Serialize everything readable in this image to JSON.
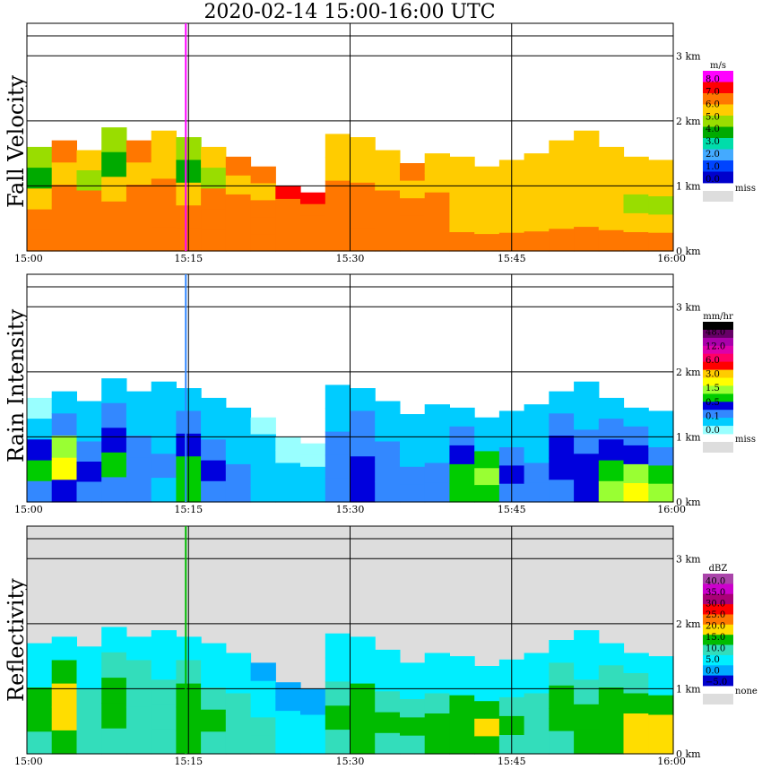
{
  "title": "2020-02-14   15:00-16:00 UTC",
  "chart_data": [
    {
      "type": "heatmap",
      "ylabel": "Fall Velocity",
      "x_ticks": [
        "15:00",
        "15:15",
        "15:30",
        "15:45",
        "16:00"
      ],
      "y_ticks": [
        "0 km",
        "1 km",
        "2 km",
        "3 km"
      ],
      "xlim": [
        "15:00",
        "16:00"
      ],
      "ylim_km": [
        0,
        3.5
      ],
      "grid": true,
      "legend": {
        "title": "m/s",
        "placement": "right",
        "labels": [
          "8.0",
          "7.0",
          "6.0",
          "5.0",
          "4.0",
          "3.0",
          "2.0",
          "1.0",
          "0.0"
        ],
        "colors": [
          "#ff00ff",
          "#ff0000",
          "#ff7700",
          "#ffcc00",
          "#99dd00",
          "#00aa00",
          "#00ddaa",
          "#44aaff",
          "#0044ff",
          "#0000cc"
        ],
        "missing_label": "miss",
        "missing_color": "#dddddd"
      },
      "echo_top_km": [
        1.6,
        1.7,
        1.55,
        1.9,
        1.7,
        1.85,
        1.75,
        1.6,
        1.45,
        1.3,
        1.0,
        0.9,
        1.8,
        1.75,
        1.55,
        1.35,
        1.5,
        1.45,
        1.3,
        1.4,
        1.5,
        1.7,
        1.85,
        1.6,
        1.45,
        1.4
      ],
      "field": [
        [
          4,
          2,
          3,
          4,
          2,
          3,
          4,
          3,
          2,
          2,
          1,
          1,
          3,
          3,
          3,
          2,
          3,
          3,
          3,
          3,
          3,
          3,
          3,
          3,
          3,
          3
        ],
        [
          5,
          3,
          4,
          5,
          3,
          3,
          5,
          4,
          3,
          3,
          2,
          2,
          3,
          3,
          3,
          3,
          3,
          3,
          3,
          3,
          3,
          3,
          3,
          3,
          3,
          3
        ],
        [
          3,
          2,
          2,
          3,
          2,
          2,
          3,
          2,
          2,
          2,
          2,
          2,
          2,
          2,
          2,
          2,
          2,
          3,
          3,
          3,
          3,
          3,
          3,
          3,
          4,
          4
        ],
        [
          2,
          2,
          2,
          2,
          2,
          2,
          2,
          2,
          2,
          2,
          2,
          2,
          2,
          2,
          2,
          2,
          2,
          3,
          3,
          3,
          3,
          3,
          3,
          3,
          3,
          3
        ],
        [
          2,
          2,
          2,
          2,
          2,
          2,
          2,
          2,
          2,
          2,
          2,
          2,
          2,
          2,
          2,
          2,
          2,
          2,
          2,
          2,
          2,
          2,
          2,
          2,
          2,
          2
        ]
      ]
    },
    {
      "type": "heatmap",
      "ylabel": "Rain Intensity",
      "x_ticks": [
        "15:00",
        "15:15",
        "15:30",
        "15:45",
        "16:00"
      ],
      "y_ticks": [
        "0 km",
        "1 km",
        "2 km",
        "3 km"
      ],
      "xlim": [
        "15:00",
        "16:00"
      ],
      "ylim_km": [
        0,
        3.5
      ],
      "grid": true,
      "legend": {
        "title": "mm/hr",
        "placement": "right",
        "labels": [
          "48.0",
          "12.0",
          "6.0",
          "3.0",
          "1.5",
          "0.5",
          "0.1",
          "0.0"
        ],
        "colors": [
          "#000000",
          "#660066",
          "#aa00aa",
          "#dd00aa",
          "#ff0066",
          "#ff0000",
          "#ffcc00",
          "#ffff00",
          "#99ff33",
          "#00cc00",
          "#0000dd",
          "#3388ff",
          "#00ccff",
          "#99ffff"
        ],
        "missing_label": "miss",
        "missing_color": "#dddddd"
      },
      "echo_top_km": [
        1.6,
        1.7,
        1.55,
        1.9,
        1.7,
        1.85,
        1.75,
        1.6,
        1.45,
        1.3,
        1.0,
        0.9,
        1.8,
        1.75,
        1.55,
        1.35,
        1.5,
        1.45,
        1.3,
        1.4,
        1.5,
        1.7,
        1.85,
        1.6,
        1.45,
        1.4
      ],
      "field": [
        [
          13,
          12,
          12,
          12,
          12,
          12,
          12,
          12,
          12,
          13,
          13,
          13,
          12,
          12,
          12,
          12,
          12,
          12,
          12,
          12,
          12,
          12,
          12,
          12,
          12,
          12
        ],
        [
          12,
          11,
          12,
          11,
          12,
          12,
          11,
          12,
          12,
          12,
          13,
          13,
          12,
          11,
          12,
          12,
          12,
          11,
          12,
          12,
          12,
          11,
          12,
          11,
          11,
          12
        ],
        [
          10,
          8,
          11,
          10,
          11,
          12,
          10,
          11,
          12,
          12,
          12,
          12,
          11,
          11,
          11,
          12,
          12,
          10,
          9,
          11,
          12,
          10,
          11,
          10,
          10,
          11
        ],
        [
          9,
          7,
          10,
          9,
          11,
          11,
          9,
          10,
          11,
          12,
          12,
          12,
          11,
          10,
          11,
          11,
          11,
          9,
          8,
          10,
          11,
          10,
          10,
          9,
          8,
          9
        ],
        [
          11,
          10,
          11,
          11,
          11,
          12,
          9,
          11,
          11,
          12,
          12,
          12,
          11,
          10,
          11,
          11,
          11,
          9,
          9,
          11,
          11,
          11,
          10,
          8,
          7,
          8
        ]
      ]
    },
    {
      "type": "heatmap",
      "ylabel": "Reflectivity",
      "x_ticks": [
        "15:00",
        "15:15",
        "15:30",
        "15:45",
        "16:00"
      ],
      "y_ticks": [
        "0 km",
        "1 km",
        "2 km",
        "3 km"
      ],
      "xlim": [
        "15:00",
        "16:00"
      ],
      "ylim_km": [
        0,
        3.5
      ],
      "grid": true,
      "legend": {
        "title": "dBZ",
        "placement": "right",
        "labels": [
          "40.0",
          "35.0",
          "30.0",
          "25.0",
          "20.0",
          "15.0",
          "10.0",
          "5.0",
          "0.0",
          "−5.0"
        ],
        "colors": [
          "#aa44aa",
          "#cc00cc",
          "#aa0077",
          "#ff0000",
          "#ff7700",
          "#ffdd00",
          "#00bb00",
          "#33ddbb",
          "#00eeff",
          "#00aaff",
          "#0000cc"
        ],
        "missing_label": "none",
        "missing_color": "#dddddd"
      },
      "echo_top_km": [
        1.7,
        1.8,
        1.65,
        1.95,
        1.8,
        1.9,
        1.8,
        1.7,
        1.55,
        1.4,
        1.1,
        1.0,
        1.85,
        1.8,
        1.6,
        1.4,
        1.55,
        1.5,
        1.35,
        1.45,
        1.55,
        1.75,
        1.9,
        1.7,
        1.55,
        1.5
      ],
      "field": [
        [
          8,
          8,
          8,
          8,
          8,
          8,
          8,
          8,
          8,
          9,
          9,
          9,
          8,
          8,
          8,
          8,
          8,
          8,
          8,
          8,
          8,
          8,
          8,
          8,
          8,
          8
        ],
        [
          8,
          6,
          8,
          7,
          7,
          8,
          7,
          8,
          8,
          8,
          9,
          9,
          8,
          8,
          8,
          8,
          8,
          8,
          8,
          8,
          8,
          7,
          8,
          7,
          7,
          8
        ],
        [
          6,
          5,
          7,
          6,
          7,
          7,
          6,
          7,
          7,
          8,
          8,
          8,
          7,
          6,
          7,
          7,
          7,
          6,
          6,
          7,
          7,
          6,
          7,
          6,
          6,
          6
        ],
        [
          6,
          5,
          7,
          6,
          7,
          7,
          6,
          6,
          7,
          7,
          8,
          8,
          6,
          6,
          6,
          6,
          6,
          6,
          5,
          6,
          7,
          6,
          6,
          6,
          5,
          5
        ],
        [
          7,
          6,
          7,
          7,
          7,
          7,
          6,
          7,
          7,
          7,
          8,
          8,
          7,
          6,
          7,
          7,
          6,
          6,
          6,
          7,
          7,
          7,
          6,
          6,
          5,
          5
        ]
      ]
    }
  ]
}
